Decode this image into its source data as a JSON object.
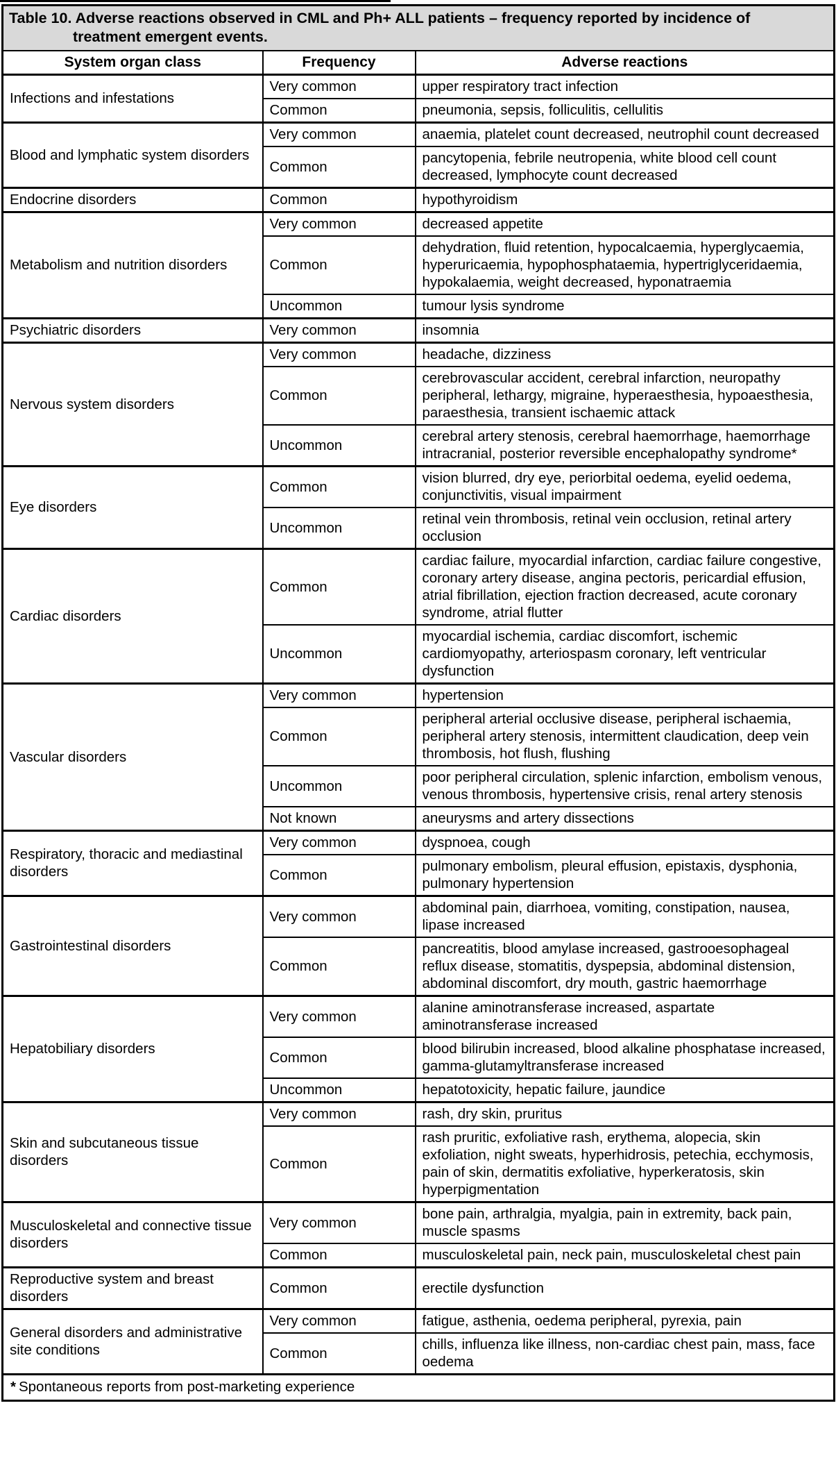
{
  "table": {
    "title_lines": [
      "Table 10. Adverse reactions observed in CML and Ph+ ALL patients – frequency reported by incidence of",
      "treatment emergent events."
    ],
    "columns": [
      "System organ class",
      "Frequency",
      "Adverse reactions"
    ],
    "groups": [
      {
        "system_organ_class": "Infections and infestations",
        "rows": [
          {
            "frequency": "Very common",
            "reactions": "upper respiratory tract infection"
          },
          {
            "frequency": "Common",
            "reactions": "pneumonia, sepsis, folliculitis, cellulitis"
          }
        ]
      },
      {
        "system_organ_class": "Blood and lymphatic system disorders",
        "rows": [
          {
            "frequency": "Very common",
            "reactions": "anaemia, platelet count decreased, neutrophil count decreased"
          },
          {
            "frequency": "Common",
            "reactions": "pancytopenia, febrile neutropenia, white blood cell count decreased, lymphocyte count decreased"
          }
        ]
      },
      {
        "system_organ_class": "Endocrine disorders",
        "rows": [
          {
            "frequency": "Common",
            "reactions": "hypothyroidism"
          }
        ]
      },
      {
        "system_organ_class": "Metabolism and nutrition disorders",
        "rows": [
          {
            "frequency": "Very common",
            "reactions": "decreased appetite"
          },
          {
            "frequency": "Common",
            "reactions": "dehydration, fluid retention, hypocalcaemia, hyperglycaemia, hyperuricaemia, hypophosphataemia, hypertriglyceridaemia, hypokalaemia, weight decreased, hyponatraemia"
          },
          {
            "frequency": "Uncommon",
            "reactions": "tumour lysis syndrome"
          }
        ]
      },
      {
        "system_organ_class": "Psychiatric disorders",
        "rows": [
          {
            "frequency": "Very common",
            "reactions": "insomnia"
          }
        ]
      },
      {
        "system_organ_class": "Nervous system disorders",
        "rows": [
          {
            "frequency": "Very common",
            "reactions": "headache, dizziness"
          },
          {
            "frequency": "Common",
            "reactions": "cerebrovascular accident, cerebral infarction, neuropathy peripheral, lethargy, migraine, hyperaesthesia, hypoaesthesia, paraesthesia, transient ischaemic attack"
          },
          {
            "frequency": "Uncommon",
            "reactions": "cerebral artery stenosis, cerebral haemorrhage, haemorrhage intracranial, posterior reversible encephalopathy syndrome*"
          }
        ]
      },
      {
        "system_organ_class": "Eye disorders",
        "rows": [
          {
            "frequency": "Common",
            "reactions": "vision blurred, dry eye, periorbital oedema, eyelid oedema, conjunctivitis, visual impairment"
          },
          {
            "frequency": "Uncommon",
            "reactions": "retinal vein thrombosis, retinal vein occlusion, retinal artery occlusion"
          }
        ]
      },
      {
        "system_organ_class": "Cardiac disorders",
        "rows": [
          {
            "frequency": "Common",
            "reactions": "cardiac failure, myocardial infarction, cardiac failure congestive, coronary artery disease, angina pectoris, pericardial effusion, atrial fibrillation, ejection fraction decreased, acute coronary syndrome, atrial flutter"
          },
          {
            "frequency": "Uncommon",
            "reactions": "myocardial ischemia, cardiac discomfort, ischemic cardiomyopathy, arteriospasm coronary, left ventricular dysfunction"
          }
        ]
      },
      {
        "system_organ_class": "Vascular disorders",
        "rows": [
          {
            "frequency": "Very common",
            "reactions": "hypertension"
          },
          {
            "frequency": "Common",
            "reactions": "peripheral arterial occlusive disease, peripheral ischaemia, peripheral artery stenosis, intermittent claudication, deep vein thrombosis, hot flush, flushing"
          },
          {
            "frequency": "Uncommon",
            "reactions": "poor peripheral circulation, splenic infarction, embolism venous, venous thrombosis, hypertensive crisis, renal artery stenosis"
          },
          {
            "frequency": "Not known",
            "reactions": "aneurysms and artery dissections"
          }
        ]
      },
      {
        "system_organ_class": "Respiratory, thoracic and mediastinal disorders",
        "rows": [
          {
            "frequency": "Very common",
            "reactions": "dyspnoea, cough"
          },
          {
            "frequency": "Common",
            "reactions": "pulmonary embolism, pleural effusion, epistaxis, dysphonia, pulmonary hypertension"
          }
        ]
      },
      {
        "system_organ_class": "Gastrointestinal disorders",
        "rows": [
          {
            "frequency": "Very common",
            "reactions": "abdominal pain, diarrhoea, vomiting, constipation, nausea, lipase increased"
          },
          {
            "frequency": "Common",
            "reactions": "pancreatitis, blood amylase increased, gastrooesophageal reflux disease, stomatitis, dyspepsia, abdominal distension, abdominal discomfort, dry mouth, gastric haemorrhage"
          }
        ]
      },
      {
        "system_organ_class": "Hepatobiliary disorders",
        "rows": [
          {
            "frequency": "Very common",
            "reactions": "alanine aminotransferase increased, aspartate aminotransferase increased"
          },
          {
            "frequency": "Common",
            "reactions": "blood bilirubin increased, blood alkaline phosphatase increased, gamma-glutamyltransferase increased"
          },
          {
            "frequency": "Uncommon",
            "reactions": "hepatotoxicity, hepatic failure, jaundice"
          }
        ]
      },
      {
        "system_organ_class": "Skin and subcutaneous tissue disorders",
        "rows": [
          {
            "frequency": "Very common",
            "reactions": "rash, dry skin, pruritus"
          },
          {
            "frequency": "Common",
            "reactions": "rash pruritic, exfoliative rash, erythema, alopecia, skin exfoliation, night sweats, hyperhidrosis, petechia, ecchymosis, pain of skin, dermatitis exfoliative, hyperkeratosis, skin hyperpigmentation"
          }
        ]
      },
      {
        "system_organ_class": "Musculoskeletal and connective tissue disorders",
        "rows": [
          {
            "frequency": "Very common",
            "reactions": "bone pain, arthralgia, myalgia, pain in extremity, back pain, muscle spasms"
          },
          {
            "frequency": "Common",
            "reactions": "musculoskeletal pain, neck pain, musculoskeletal chest pain"
          }
        ]
      },
      {
        "system_organ_class": "Reproductive system and breast disorders",
        "rows": [
          {
            "frequency": "Common",
            "reactions": "erectile dysfunction"
          }
        ]
      },
      {
        "system_organ_class": "General disorders and administrative site conditions",
        "rows": [
          {
            "frequency": "Very common",
            "reactions": "fatigue, asthenia, oedema peripheral, pyrexia, pain"
          },
          {
            "frequency": "Common",
            "reactions": "chills, influenza like illness, non-cardiac chest pain, mass, face oedema"
          }
        ]
      }
    ],
    "footnote_marker": "*",
    "footnote_text": "Spontaneous reports from post-marketing experience",
    "colors": {
      "title_bg": "#d9d9d9",
      "border": "#000000",
      "text": "#000000",
      "body_bg": "#ffffff"
    }
  }
}
